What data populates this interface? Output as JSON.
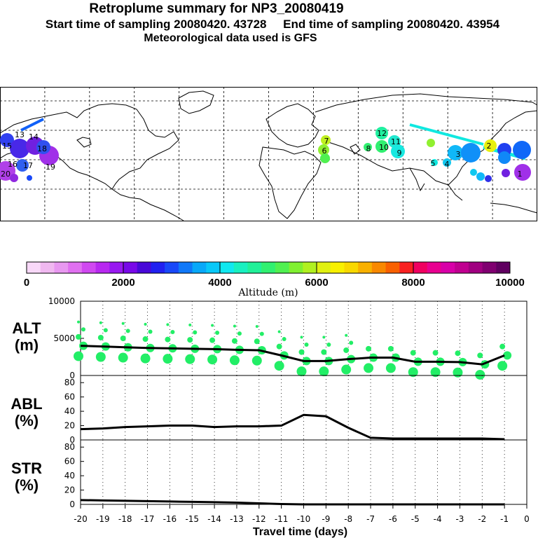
{
  "header": {
    "title": "Retroplume summary for NP3_20080419",
    "sampling": "Start time of sampling 20080420. 43728     End time of sampling 20080420. 43954",
    "met": "Meteorological data used is GFS"
  },
  "colorbar": {
    "label": "Altitude (m)",
    "ticks": [
      "0",
      "2000",
      "4000",
      "6000",
      "8000",
      "10000"
    ],
    "colors": [
      "#f8d8f8",
      "#f0b8f0",
      "#e898f0",
      "#e070f0",
      "#d048f0",
      "#b828f0",
      "#9818f0",
      "#7808e8",
      "#4808d8",
      "#2020f0",
      "#1848f8",
      "#1078f8",
      "#08a8f8",
      "#08c8f8",
      "#10e8f0",
      "#18f0c0",
      "#20f098",
      "#30f070",
      "#50f050",
      "#80f030",
      "#b0f020",
      "#e0f010",
      "#f8f000",
      "#f8d800",
      "#f8b000",
      "#f88800",
      "#f86000",
      "#f82020",
      "#f00060",
      "#e80090",
      "#d800a8",
      "#c00090",
      "#a00080",
      "#800070",
      "#600060"
    ]
  },
  "map": {
    "labels": [
      "20",
      "19",
      "18",
      "17",
      "16",
      "15",
      "14",
      "13",
      "12",
      "11",
      "10",
      "9",
      "8",
      "7",
      "6",
      "5",
      "4",
      "3",
      "2",
      "1"
    ]
  },
  "chart_data": [
    {
      "type": "line",
      "name": "ALT",
      "title": "ALT",
      "ylabel": "(m)",
      "x": [
        -20,
        -19,
        -18,
        -17,
        -16,
        -15,
        -14,
        -13,
        -12,
        -11,
        -10,
        -9,
        -8,
        -7,
        -6,
        -5,
        -4,
        -3,
        -2,
        -1
      ],
      "values": [
        4000,
        3900,
        3800,
        3700,
        3650,
        3600,
        3550,
        3450,
        3400,
        2700,
        1950,
        1950,
        2200,
        2400,
        2400,
        1850,
        1850,
        1800,
        1500,
        2700
      ],
      "ylim": [
        0,
        10000
      ],
      "yticks": [
        "10000",
        "5000",
        "0"
      ],
      "scatter_color": "#22ee66"
    },
    {
      "type": "line",
      "name": "ABL",
      "title": "ABL",
      "ylabel": "(%)",
      "x": [
        -20,
        -19,
        -18,
        -17,
        -16,
        -15,
        -14,
        -13,
        -12,
        -11,
        -10,
        -9,
        -8,
        -7,
        -6,
        -5,
        -4,
        -3,
        -2,
        -1
      ],
      "values": [
        15,
        16,
        18,
        19,
        20,
        20,
        18,
        19,
        19,
        20,
        35,
        33,
        17,
        3,
        2,
        2,
        2,
        2,
        2,
        1
      ],
      "ylim": [
        0,
        90
      ],
      "yticks": [
        "80",
        "60",
        "40",
        "20",
        "0"
      ]
    },
    {
      "type": "line",
      "name": "STR",
      "title": "STR",
      "ylabel": "(%)",
      "x": [
        -20,
        -19,
        -18,
        -17,
        -16,
        -15,
        -14,
        -13,
        -12,
        -11,
        -10,
        -9,
        -8,
        -7,
        -6,
        -5,
        -4,
        -3,
        -2,
        -1
      ],
      "values": [
        6,
        5.5,
        5,
        4.5,
        4,
        3.5,
        3,
        2.5,
        1.5,
        0.5,
        0,
        0,
        0,
        0,
        0,
        0,
        0,
        0,
        0,
        0
      ],
      "ylim": [
        0,
        90
      ],
      "yticks": [
        "80",
        "60",
        "40",
        "20",
        "0"
      ]
    }
  ],
  "xaxis": {
    "label": "Travel time (days)",
    "ticks": [
      "-20",
      "-19",
      "-18",
      "-17",
      "-16",
      "-15",
      "-14",
      "-13",
      "-12",
      "-11",
      "-10",
      "-9",
      "-8",
      "-7",
      "-6",
      "-5",
      "-4",
      "-3",
      "-2",
      "-1",
      "0"
    ]
  }
}
